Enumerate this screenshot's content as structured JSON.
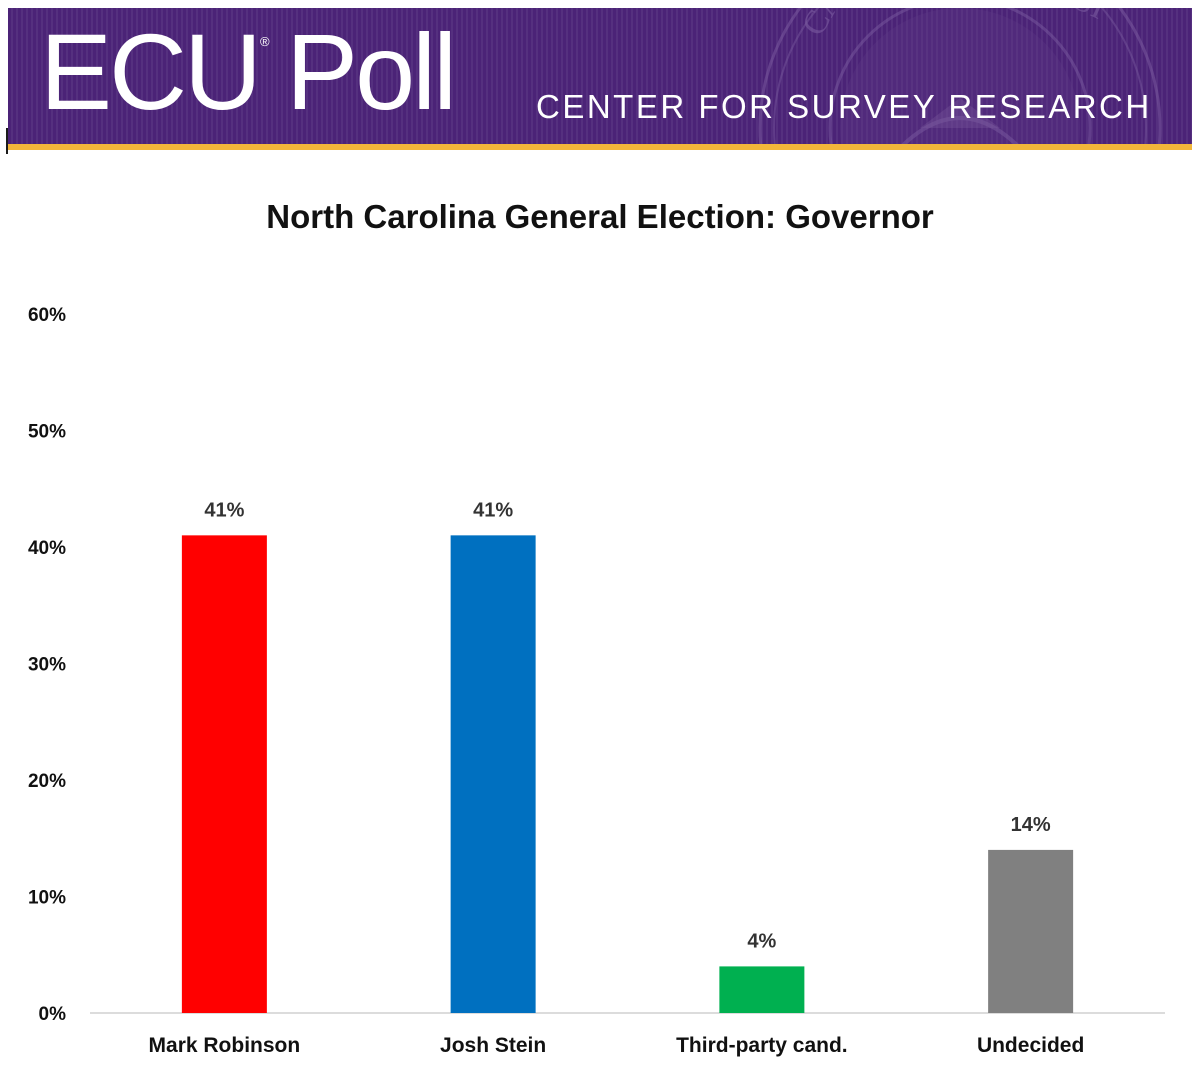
{
  "banner": {
    "logo": "ECU Poll",
    "logo_reg_mark": "®",
    "subtitle": "CENTER FOR SURVEY RESEARCH",
    "seal_icon": "university-seal-icon",
    "colors": {
      "purple": "#4b2377",
      "gold": "#f2b63a"
    }
  },
  "chart_data": {
    "type": "bar",
    "title": "North Carolina General Election: Governor",
    "xlabel": "",
    "ylabel": "",
    "categories": [
      "Mark Robinson",
      "Josh Stein",
      "Third-party cand.",
      "Undecided"
    ],
    "values": [
      41,
      41,
      4,
      14
    ],
    "data_labels": [
      "41%",
      "41%",
      "4%",
      "14%"
    ],
    "colors": [
      "#ff0000",
      "#0070c0",
      "#00b050",
      "#808080"
    ],
    "ylim": [
      0,
      60
    ],
    "yticks": [
      0,
      10,
      20,
      30,
      40,
      50,
      60
    ],
    "ytick_labels": [
      "0%",
      "10%",
      "20%",
      "30%",
      "40%",
      "50%",
      "60%"
    ],
    "grid": false,
    "legend": "none"
  }
}
